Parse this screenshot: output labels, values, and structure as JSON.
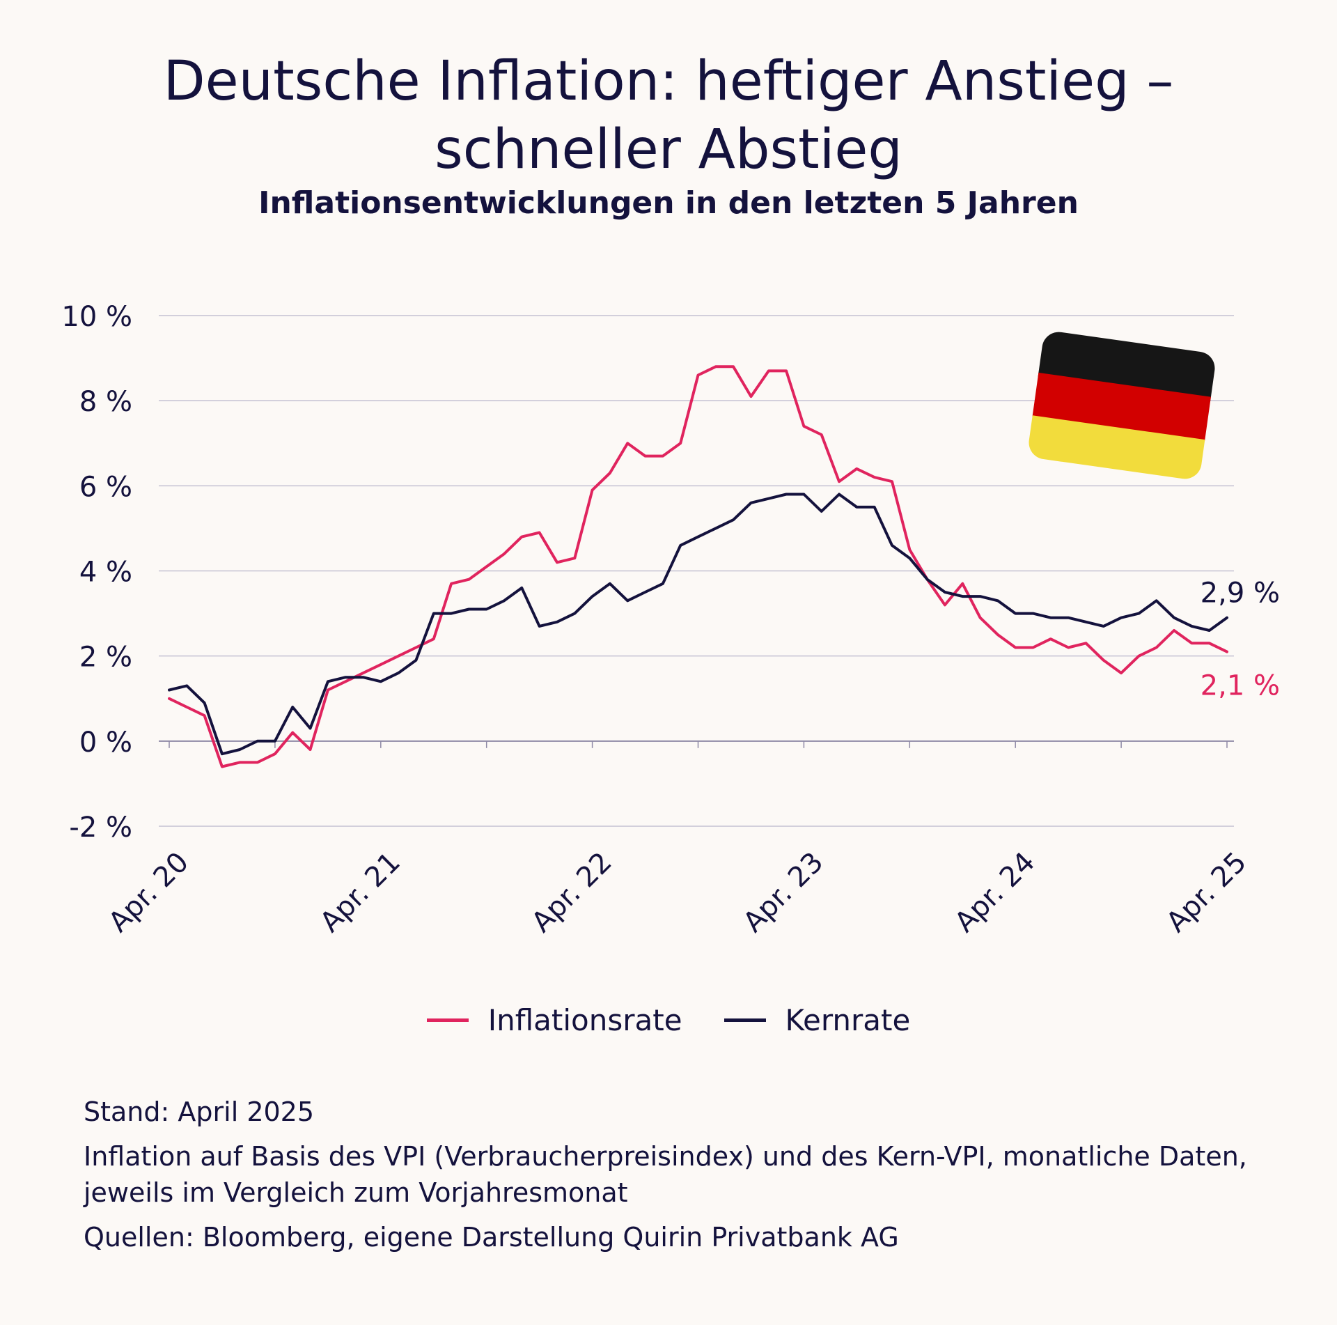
{
  "header": {
    "title_line1": "Deutsche Inflation: heftiger Anstieg –",
    "title_line2": "schneller Abstieg",
    "subtitle": "Inflationsentwicklungen in den letzten 5 Jahren"
  },
  "chart_data": {
    "type": "line",
    "x_range": [
      "2020-04",
      "2025-04"
    ],
    "x": [
      "2020-04",
      "2020-05",
      "2020-06",
      "2020-07",
      "2020-08",
      "2020-09",
      "2020-10",
      "2020-11",
      "2020-12",
      "2021-01",
      "2021-02",
      "2021-03",
      "2021-04",
      "2021-05",
      "2021-06",
      "2021-07",
      "2021-08",
      "2021-09",
      "2021-10",
      "2021-11",
      "2021-12",
      "2022-01",
      "2022-02",
      "2022-03",
      "2022-04",
      "2022-05",
      "2022-06",
      "2022-07",
      "2022-08",
      "2022-09",
      "2022-10",
      "2022-11",
      "2022-12",
      "2023-01",
      "2023-02",
      "2023-03",
      "2023-04",
      "2023-05",
      "2023-06",
      "2023-07",
      "2023-08",
      "2023-09",
      "2023-10",
      "2023-11",
      "2023-12",
      "2024-01",
      "2024-02",
      "2024-03",
      "2024-04",
      "2024-05",
      "2024-06",
      "2024-07",
      "2024-08",
      "2024-09",
      "2024-10",
      "2024-11",
      "2024-12",
      "2025-01",
      "2025-02",
      "2025-03",
      "2025-04"
    ],
    "x_ticks": [
      "Apr. 20",
      "Apr. 21",
      "Apr. 22",
      "Apr. 23",
      "Apr. 24",
      "Apr. 25"
    ],
    "y_ticks": [
      "10 %",
      "8 %",
      "6 %",
      "4 %",
      "2 %",
      "0 %",
      "-2 %"
    ],
    "y_tick_values": [
      10,
      8,
      6,
      4,
      2,
      0,
      -2
    ],
    "ylim": [
      -2,
      10
    ],
    "grid": true,
    "series": [
      {
        "name": "Inflationsrate",
        "color": "#e0245e",
        "end_label": "2,1 %",
        "values": [
          1.0,
          0.8,
          0.6,
          -0.6,
          -0.5,
          -0.5,
          -0.3,
          0.2,
          -0.2,
          1.2,
          1.4,
          1.6,
          1.8,
          2.0,
          2.2,
          2.4,
          3.7,
          3.8,
          4.1,
          4.4,
          4.8,
          4.9,
          4.2,
          4.3,
          5.9,
          6.3,
          7.0,
          6.7,
          6.7,
          7.0,
          8.6,
          8.8,
          8.8,
          8.1,
          8.7,
          8.7,
          7.4,
          7.2,
          6.1,
          6.4,
          6.2,
          6.1,
          4.5,
          3.8,
          3.2,
          3.7,
          2.9,
          2.5,
          2.2,
          2.2,
          2.4,
          2.2,
          2.3,
          1.9,
          1.6,
          2.0,
          2.2,
          2.6,
          2.3,
          2.3,
          2.1
        ]
      },
      {
        "name": "Kernrate",
        "color": "#14123d",
        "end_label": "2,9 %",
        "values": [
          1.2,
          1.3,
          0.9,
          -0.3,
          -0.2,
          0.0,
          0.0,
          0.8,
          0.3,
          1.4,
          1.5,
          1.5,
          1.4,
          1.6,
          1.9,
          3.0,
          3.0,
          3.1,
          3.1,
          3.3,
          3.6,
          2.7,
          2.8,
          3.0,
          3.4,
          3.7,
          3.3,
          3.5,
          3.7,
          4.6,
          4.8,
          5.0,
          5.2,
          5.6,
          5.7,
          5.8,
          5.8,
          5.4,
          5.8,
          5.5,
          5.5,
          4.6,
          4.3,
          3.8,
          3.5,
          3.4,
          3.4,
          3.3,
          3.0,
          3.0,
          2.9,
          2.9,
          2.8,
          2.7,
          2.9,
          3.0,
          3.3,
          2.9,
          2.7,
          2.6,
          2.9
        ]
      }
    ]
  },
  "flag": {
    "icon": "germany-flag-icon",
    "colors": [
      "#161616",
      "#d20000",
      "#f2dc3c"
    ]
  },
  "legend": {
    "items": [
      {
        "label": "Inflationsrate",
        "color": "#e0245e"
      },
      {
        "label": "Kernrate",
        "color": "#14123d"
      }
    ]
  },
  "notes": {
    "stand": "Stand: April 2025",
    "description": "Inflation auf Basis des VPI (Verbraucherpreisindex) und des Kern-VPI, monatliche Daten, jeweils im Vergleich zum Vorjahresmonat",
    "sources": "Quellen: Bloomberg, eigene Darstellung Quirin Privatbank AG"
  }
}
